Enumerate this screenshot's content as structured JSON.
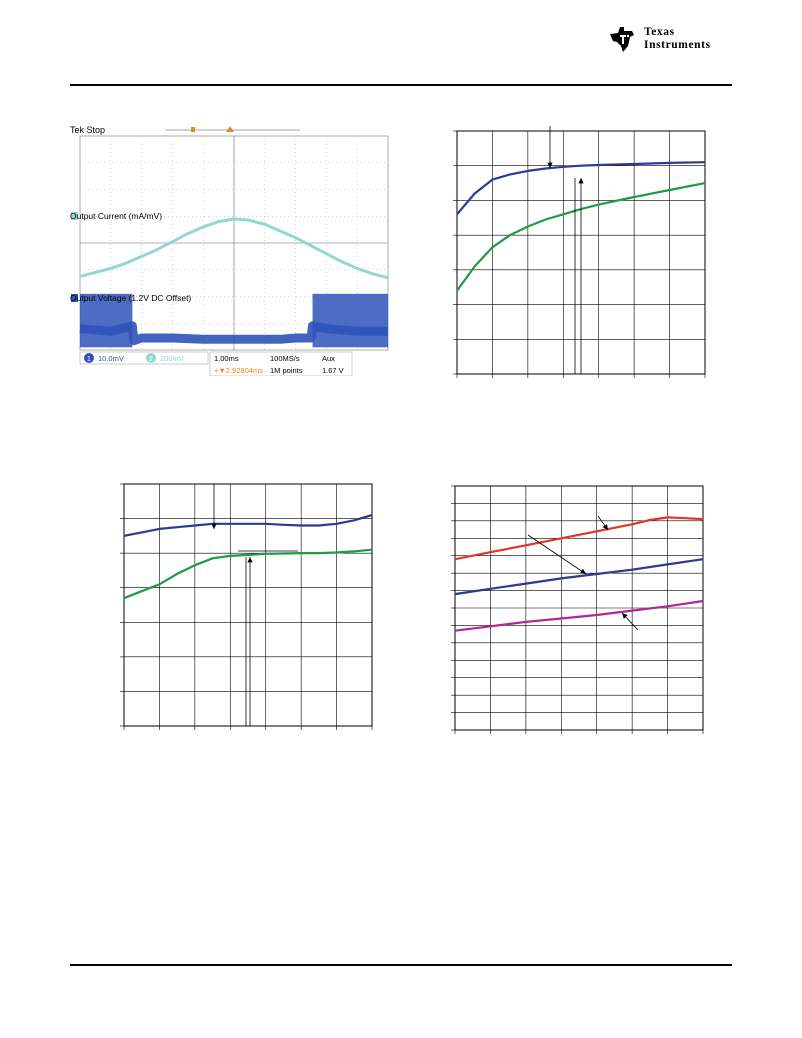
{
  "header": {
    "logo_line1": "Texas",
    "logo_line2": "Instruments"
  },
  "colors": {
    "navy": "#2b3b8f",
    "green": "#1f9a48",
    "red": "#e3342f",
    "purple": "#b0279a",
    "scope_trace_current": "#8fd9cf",
    "scope_trace_voltage": "#2e52b8",
    "scope_background": "#ffffff",
    "scope_status_orange": "#e38a1c"
  },
  "scope": {
    "status": "Tek Stop",
    "ch1_label": "Output Current (mA/mV)",
    "ch2_label": "Output Voltage (1.2V DC Offset)",
    "ch1_marker": "2",
    "ch2_marker": "1",
    "ch1_setting_num": "1",
    "ch1_setting": "10.0mV",
    "ch2_setting_num": "2",
    "ch2_setting": "200mV",
    "timebase": "1.00ms",
    "sample_rate": "100MS/s",
    "trigger_source": "Aux",
    "trigger_level": "1.67 V",
    "cursor_delta": "+▼2.92804ms",
    "record_length": "1M points"
  },
  "chart_data": [
    {
      "type": "scope",
      "title": "",
      "xlabel": "",
      "ylabel": "",
      "grid": true,
      "divisions_x": 10,
      "divisions_y": 8,
      "series": [
        {
          "name": "Output Current (mA/mV)",
          "x_div": [
            0,
            0.5,
            1,
            1.5,
            2,
            2.5,
            3,
            3.5,
            4,
            4.5,
            5,
            5.5,
            6,
            6.5,
            7,
            7.5,
            8,
            8.5,
            9,
            9.5,
            10
          ],
          "y_div": [
            -1.25,
            -1.1,
            -0.95,
            -0.75,
            -0.5,
            -0.25,
            0.05,
            0.35,
            0.6,
            0.8,
            0.9,
            0.85,
            0.7,
            0.45,
            0.2,
            -0.1,
            -0.4,
            -0.7,
            -0.95,
            -1.15,
            -1.3
          ]
        },
        {
          "name": "Output Voltage (1.2V DC Offset)",
          "x_div": [
            0,
            1,
            1.7,
            1.75,
            2,
            3,
            4,
            5,
            6,
            6.5,
            7,
            7.5,
            7.55,
            8,
            9,
            10
          ],
          "y_div": [
            -3.2,
            -3.3,
            -3.1,
            -3.65,
            -3.55,
            -3.55,
            -3.6,
            -3.6,
            -3.6,
            -3.6,
            -3.55,
            -3.55,
            -3.1,
            -3.2,
            -3.3,
            -3.3
          ]
        }
      ]
    },
    {
      "type": "line",
      "title": "",
      "xlabel": "",
      "ylabel": "",
      "grid": true,
      "x_divisions": 7,
      "y_divisions": 7,
      "xlim": [
        0,
        7
      ],
      "ylim": [
        0,
        7
      ],
      "series": [
        {
          "color": "#2b3b8f",
          "x": [
            0,
            0.5,
            1,
            1.5,
            2,
            2.5,
            3,
            3.5,
            4,
            5,
            6,
            7
          ],
          "y": [
            4.6,
            5.2,
            5.6,
            5.75,
            5.85,
            5.92,
            5.97,
            6.0,
            6.02,
            6.05,
            6.08,
            6.1
          ]
        },
        {
          "color": "#1f9a48",
          "x": [
            0,
            0.5,
            1,
            1.5,
            2,
            2.5,
            3,
            3.5,
            4,
            5,
            6,
            7
          ],
          "y": [
            2.4,
            3.1,
            3.65,
            4.0,
            4.25,
            4.45,
            4.6,
            4.75,
            4.88,
            5.1,
            5.3,
            5.5
          ]
        }
      ]
    },
    {
      "type": "line",
      "title": "",
      "xlabel": "",
      "ylabel": "",
      "grid": true,
      "x_divisions": 7,
      "y_divisions": 7,
      "xlim": [
        0,
        7
      ],
      "ylim": [
        0,
        7
      ],
      "series": [
        {
          "color": "#2b3b8f",
          "x": [
            0,
            0.5,
            1,
            1.5,
            2,
            2.5,
            3,
            3.5,
            4,
            4.5,
            5,
            5.5,
            6,
            6.5,
            7
          ],
          "y": [
            5.5,
            5.6,
            5.7,
            5.75,
            5.8,
            5.85,
            5.85,
            5.85,
            5.85,
            5.82,
            5.8,
            5.8,
            5.85,
            5.95,
            6.1
          ]
        },
        {
          "color": "#1f9a48",
          "x": [
            0,
            0.5,
            1,
            1.5,
            2,
            2.5,
            3,
            3.5,
            4,
            4.5,
            5,
            5.5,
            6,
            6.5,
            7
          ],
          "y": [
            3.7,
            3.9,
            4.1,
            4.4,
            4.65,
            4.85,
            4.92,
            4.95,
            4.98,
            4.99,
            5.0,
            5.0,
            5.02,
            5.05,
            5.1
          ]
        }
      ]
    },
    {
      "type": "line",
      "title": "",
      "xlabel": "",
      "ylabel": "",
      "grid": true,
      "x_divisions": 7,
      "y_divisions": 14,
      "xlim": [
        0,
        7
      ],
      "ylim": [
        0,
        14
      ],
      "series": [
        {
          "color": "#e3342f",
          "x": [
            0,
            1,
            2,
            3,
            4,
            5,
            5.5,
            6,
            6.5,
            7
          ],
          "y": [
            9.8,
            10.2,
            10.6,
            11.0,
            11.4,
            11.8,
            12.05,
            12.2,
            12.15,
            12.1
          ]
        },
        {
          "color": "#2b3b8f",
          "x": [
            0,
            1,
            2,
            3,
            4,
            5,
            6,
            7
          ],
          "y": [
            7.8,
            8.1,
            8.4,
            8.7,
            8.95,
            9.2,
            9.5,
            9.8
          ]
        },
        {
          "color": "#b0279a",
          "x": [
            0,
            1,
            2,
            3,
            4,
            5,
            6,
            7
          ],
          "y": [
            5.7,
            5.95,
            6.2,
            6.4,
            6.6,
            6.85,
            7.1,
            7.4
          ]
        }
      ]
    }
  ]
}
